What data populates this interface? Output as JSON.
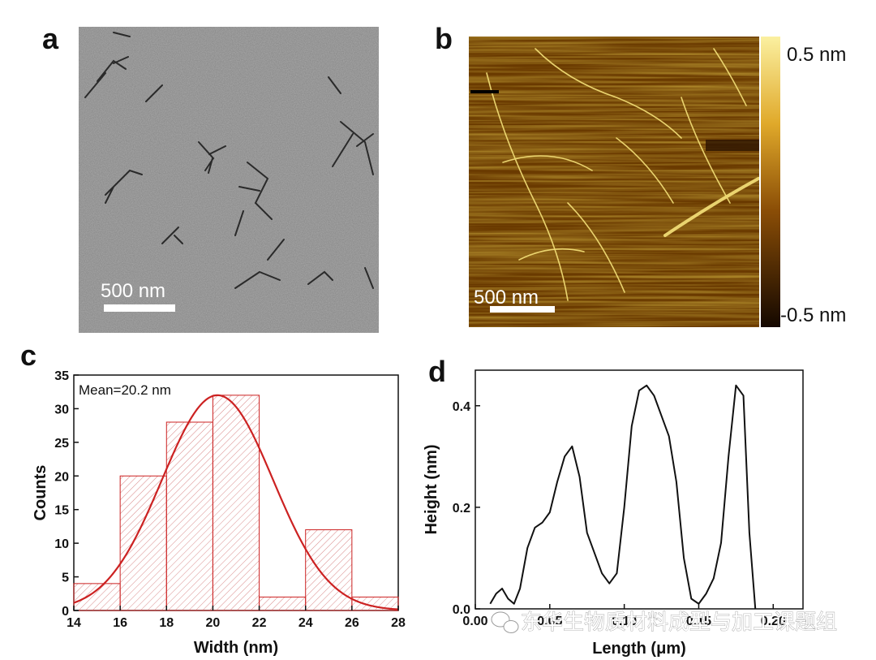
{
  "panels": {
    "a": {
      "letter": "a",
      "scale_bar": "500 nm"
    },
    "b": {
      "letter": "b",
      "scale_bar": "500 nm",
      "colorbar_max": "0.5 nm",
      "colorbar_min": "-0.5 nm"
    },
    "c": {
      "letter": "c",
      "annotation": "Mean=20.2 nm"
    },
    "d": {
      "letter": "d"
    }
  },
  "watermark": "东华生物质材料成型与加工课题组",
  "colors": {
    "histogram": "#cc2222",
    "profile": "#111111",
    "tem_bg": "#8c8c8c",
    "afm_dark": "#5a3000",
    "afm_light": "#f6e27a"
  },
  "chart_data": [
    {
      "type": "bar",
      "panel": "c",
      "xlabel": "Width (nm)",
      "ylabel": "Counts",
      "xlim": [
        14,
        28
      ],
      "ylim": [
        0,
        35
      ],
      "xticks": [
        14,
        16,
        18,
        20,
        22,
        24,
        26,
        28
      ],
      "yticks": [
        0,
        5,
        10,
        15,
        20,
        25,
        30,
        35
      ],
      "bins": [
        {
          "from": 14,
          "to": 16,
          "count": 4
        },
        {
          "from": 16,
          "to": 18,
          "count": 20
        },
        {
          "from": 18,
          "to": 20,
          "count": 28
        },
        {
          "from": 20,
          "to": 22,
          "count": 32
        },
        {
          "from": 22,
          "to": 24,
          "count": 2
        },
        {
          "from": 24,
          "to": 26,
          "count": 12
        },
        {
          "from": 26,
          "to": 28,
          "count": 2
        }
      ],
      "fit": {
        "type": "gaussian",
        "mean": 20.2,
        "sigma": 2.4,
        "amplitude": 32
      }
    },
    {
      "type": "line",
      "panel": "d",
      "xlabel": "Length (μm)",
      "ylabel": "Height (nm)",
      "xlim": [
        0,
        0.22
      ],
      "ylim": [
        0,
        0.47
      ],
      "xticks": [
        0.0,
        0.05,
        0.1,
        0.15,
        0.2
      ],
      "xtick_labels": [
        "0.00",
        "0.05",
        "0.10",
        "0.15",
        "0.20"
      ],
      "yticks": [
        0.0,
        0.2,
        0.4
      ],
      "ytick_labels": [
        "0.0",
        "0.2",
        "0.4"
      ],
      "x": [
        0.01,
        0.014,
        0.018,
        0.022,
        0.026,
        0.03,
        0.035,
        0.04,
        0.045,
        0.05,
        0.055,
        0.06,
        0.065,
        0.07,
        0.075,
        0.08,
        0.085,
        0.09,
        0.095,
        0.1,
        0.105,
        0.11,
        0.115,
        0.12,
        0.125,
        0.13,
        0.135,
        0.14,
        0.145,
        0.15,
        0.155,
        0.16,
        0.165,
        0.17,
        0.175,
        0.18,
        0.184,
        0.188
      ],
      "y": [
        0.01,
        0.03,
        0.04,
        0.02,
        0.01,
        0.04,
        0.12,
        0.16,
        0.17,
        0.19,
        0.25,
        0.3,
        0.32,
        0.26,
        0.15,
        0.11,
        0.07,
        0.05,
        0.07,
        0.2,
        0.36,
        0.43,
        0.44,
        0.42,
        0.38,
        0.34,
        0.25,
        0.1,
        0.02,
        0.01,
        0.03,
        0.06,
        0.13,
        0.3,
        0.44,
        0.42,
        0.15,
        0.0
      ]
    }
  ]
}
